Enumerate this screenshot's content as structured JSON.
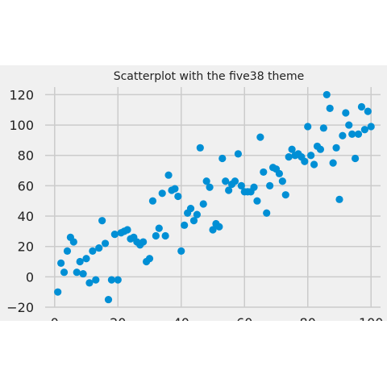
{
  "chart_data": {
    "type": "scatter",
    "title": "Scatterplot with the five38 theme",
    "xlabel": "",
    "ylabel": "",
    "xlim": [
      -3,
      103
    ],
    "ylim": [
      -20,
      125
    ],
    "x_ticks": [
      0,
      20,
      40,
      60,
      80,
      100
    ],
    "y_ticks": [
      -20,
      0,
      20,
      40,
      60,
      80,
      100,
      120
    ],
    "grid": true,
    "point_color": "#008fd5",
    "background_color": "#f0f0f0",
    "series": [
      {
        "points": [
          [
            1,
            -10
          ],
          [
            2,
            9
          ],
          [
            3,
            3
          ],
          [
            4,
            17
          ],
          [
            5,
            26
          ],
          [
            6,
            23
          ],
          [
            7,
            3
          ],
          [
            8,
            10
          ],
          [
            9,
            2
          ],
          [
            10,
            12
          ],
          [
            11,
            -4
          ],
          [
            12,
            17
          ],
          [
            13,
            -2
          ],
          [
            14,
            19
          ],
          [
            15,
            37
          ],
          [
            16,
            22
          ],
          [
            17,
            -15
          ],
          [
            18,
            -2
          ],
          [
            19,
            28
          ],
          [
            20,
            -2
          ],
          [
            21,
            29
          ],
          [
            22,
            30
          ],
          [
            23,
            31
          ],
          [
            24,
            25
          ],
          [
            25,
            26
          ],
          [
            26,
            23
          ],
          [
            27,
            21
          ],
          [
            28,
            23
          ],
          [
            29,
            10
          ],
          [
            30,
            12
          ],
          [
            31,
            50
          ],
          [
            32,
            27
          ],
          [
            33,
            32
          ],
          [
            34,
            55
          ],
          [
            35,
            27
          ],
          [
            36,
            67
          ],
          [
            37,
            57
          ],
          [
            38,
            58
          ],
          [
            39,
            53
          ],
          [
            40,
            17
          ],
          [
            41,
            34
          ],
          [
            42,
            42
          ],
          [
            43,
            45
          ],
          [
            44,
            37
          ],
          [
            45,
            41
          ],
          [
            46,
            85
          ],
          [
            47,
            48
          ],
          [
            48,
            63
          ],
          [
            49,
            59
          ],
          [
            50,
            31
          ],
          [
            51,
            35
          ],
          [
            52,
            33
          ],
          [
            53,
            78
          ],
          [
            54,
            63
          ],
          [
            55,
            57
          ],
          [
            56,
            61
          ],
          [
            57,
            63
          ],
          [
            58,
            81
          ],
          [
            59,
            60
          ],
          [
            60,
            56
          ],
          [
            61,
            56
          ],
          [
            62,
            56
          ],
          [
            63,
            59
          ],
          [
            64,
            50
          ],
          [
            65,
            92
          ],
          [
            66,
            69
          ],
          [
            67,
            42
          ],
          [
            68,
            60
          ],
          [
            69,
            72
          ],
          [
            70,
            71
          ],
          [
            71,
            68
          ],
          [
            72,
            63
          ],
          [
            73,
            54
          ],
          [
            74,
            79
          ],
          [
            75,
            84
          ],
          [
            76,
            80
          ],
          [
            77,
            81
          ],
          [
            78,
            79
          ],
          [
            79,
            76
          ],
          [
            80,
            99
          ],
          [
            81,
            80
          ],
          [
            82,
            74
          ],
          [
            83,
            86
          ],
          [
            84,
            84
          ],
          [
            85,
            98
          ],
          [
            86,
            120
          ],
          [
            87,
            111
          ],
          [
            88,
            75
          ],
          [
            89,
            85
          ],
          [
            90,
            51
          ],
          [
            91,
            93
          ],
          [
            92,
            108
          ],
          [
            93,
            100
          ],
          [
            94,
            94
          ],
          [
            95,
            78
          ],
          [
            96,
            94
          ],
          [
            97,
            112
          ],
          [
            98,
            97
          ],
          [
            99,
            109
          ],
          [
            100,
            99
          ]
        ]
      }
    ]
  }
}
